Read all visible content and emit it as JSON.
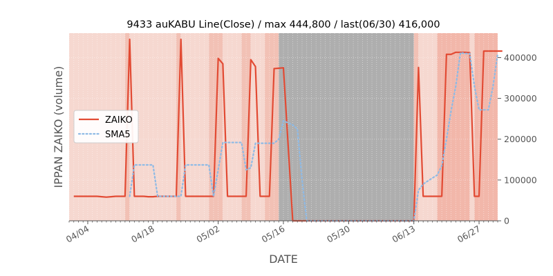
{
  "chart_data": {
    "type": "line",
    "title": "9433 auKABU Line(Close) / max 444,800 / last(06/30) 416,000",
    "xlabel": "DATE",
    "ylabel": "IPPAN ZAIKO (volume)",
    "x_start": "2024-03-31",
    "x_end": "2024-07-01",
    "ylim": [
      0,
      460000
    ],
    "yticks": [
      0,
      100000,
      200000,
      300000,
      400000
    ],
    "ytick_labels": [
      "0",
      "100000",
      "200000",
      "300000",
      "400000"
    ],
    "xticks": [
      "2024-04-04",
      "2024-04-18",
      "2024-05-02",
      "2024-05-16",
      "2024-05-30",
      "2024-06-13",
      "2024-06-27"
    ],
    "xtick_labels": [
      "04/04",
      "04/18",
      "05/02",
      "05/16",
      "05/30",
      "06/13",
      "06/27"
    ],
    "grid": true,
    "legend_position": "center-left",
    "series": [
      {
        "name": "ZAIKO",
        "style": "solid",
        "color": "#E24A33",
        "points": [
          [
            "2024-04-01",
            60000
          ],
          [
            "2024-04-02",
            60000
          ],
          [
            "2024-04-03",
            60000
          ],
          [
            "2024-04-04",
            60000
          ],
          [
            "2024-04-05",
            60000
          ],
          [
            "2024-04-06",
            60000
          ],
          [
            "2024-04-07",
            59000
          ],
          [
            "2024-04-08",
            58000
          ],
          [
            "2024-04-09",
            59000
          ],
          [
            "2024-04-10",
            60000
          ],
          [
            "2024-04-11",
            60000
          ],
          [
            "2024-04-12",
            60000
          ],
          [
            "2024-04-13",
            444800
          ],
          [
            "2024-04-14",
            60000
          ],
          [
            "2024-04-15",
            60000
          ],
          [
            "2024-04-16",
            60000
          ],
          [
            "2024-04-17",
            59000
          ],
          [
            "2024-04-18",
            59000
          ],
          [
            "2024-04-19",
            60000
          ],
          [
            "2024-04-20",
            60000
          ],
          [
            "2024-04-21",
            60000
          ],
          [
            "2024-04-22",
            60000
          ],
          [
            "2024-04-23",
            60000
          ],
          [
            "2024-04-24",
            444800
          ],
          [
            "2024-04-25",
            60000
          ],
          [
            "2024-04-26",
            60000
          ],
          [
            "2024-04-27",
            60000
          ],
          [
            "2024-04-28",
            60000
          ],
          [
            "2024-04-29",
            60000
          ],
          [
            "2024-04-30",
            60000
          ],
          [
            "2024-05-01",
            60000
          ],
          [
            "2024-05-02",
            398000
          ],
          [
            "2024-05-03",
            385000
          ],
          [
            "2024-05-04",
            60000
          ],
          [
            "2024-05-05",
            60000
          ],
          [
            "2024-05-06",
            60000
          ],
          [
            "2024-05-07",
            60000
          ],
          [
            "2024-05-08",
            60000
          ],
          [
            "2024-05-09",
            395000
          ],
          [
            "2024-05-10",
            378000
          ],
          [
            "2024-05-11",
            60000
          ],
          [
            "2024-05-12",
            60000
          ],
          [
            "2024-05-13",
            60000
          ],
          [
            "2024-05-14",
            373000
          ],
          [
            "2024-05-15",
            374000
          ],
          [
            "2024-05-16",
            375000
          ],
          [
            "2024-05-18",
            0
          ],
          [
            "2024-06-13",
            0
          ],
          [
            "2024-06-14",
            376000
          ],
          [
            "2024-06-15",
            60000
          ],
          [
            "2024-06-16",
            60000
          ],
          [
            "2024-06-17",
            60000
          ],
          [
            "2024-06-18",
            60000
          ],
          [
            "2024-06-19",
            60000
          ],
          [
            "2024-06-20",
            408000
          ],
          [
            "2024-06-21",
            408000
          ],
          [
            "2024-06-22",
            413000
          ],
          [
            "2024-06-23",
            413000
          ],
          [
            "2024-06-24",
            413000
          ],
          [
            "2024-06-25",
            412000
          ],
          [
            "2024-06-26",
            60000
          ],
          [
            "2024-06-27",
            60000
          ],
          [
            "2024-06-28",
            416000
          ],
          [
            "2024-06-29",
            416000
          ],
          [
            "2024-06-30",
            416000
          ],
          [
            "2024-07-01",
            416000
          ],
          [
            "2024-07-02",
            416000
          ]
        ]
      },
      {
        "name": "SMA5",
        "style": "dotted",
        "color": "#8EBAE5",
        "points": [
          [
            "2024-04-13",
            60000
          ],
          [
            "2024-04-14",
            137000
          ],
          [
            "2024-04-17",
            137000
          ],
          [
            "2024-04-18",
            137000
          ],
          [
            "2024-04-19",
            60000
          ],
          [
            "2024-04-24",
            60000
          ],
          [
            "2024-04-25",
            137000
          ],
          [
            "2024-04-29",
            137000
          ],
          [
            "2024-04-30",
            137000
          ],
          [
            "2024-05-01",
            60000
          ],
          [
            "2024-05-02",
            125000
          ],
          [
            "2024-05-03",
            192000
          ],
          [
            "2024-05-06",
            192000
          ],
          [
            "2024-05-07",
            192000
          ],
          [
            "2024-05-08",
            125000
          ],
          [
            "2024-05-09",
            130000
          ],
          [
            "2024-05-10",
            190000
          ],
          [
            "2024-05-13",
            190000
          ],
          [
            "2024-05-14",
            190000
          ],
          [
            "2024-05-15",
            200000
          ],
          [
            "2024-05-16",
            245000
          ],
          [
            "2024-05-17",
            240000
          ],
          [
            "2024-05-18",
            235000
          ],
          [
            "2024-05-19",
            225000
          ],
          [
            "2024-05-20",
            100000
          ],
          [
            "2024-05-21",
            0
          ],
          [
            "2024-06-13",
            0
          ],
          [
            "2024-06-14",
            75000
          ],
          [
            "2024-06-15",
            90000
          ],
          [
            "2024-06-17",
            105000
          ],
          [
            "2024-06-18",
            112000
          ],
          [
            "2024-06-19",
            135000
          ],
          [
            "2024-06-20",
            200000
          ],
          [
            "2024-06-21",
            270000
          ],
          [
            "2024-06-22",
            330000
          ],
          [
            "2024-06-23",
            412000
          ],
          [
            "2024-06-24",
            410000
          ],
          [
            "2024-06-25",
            410000
          ],
          [
            "2024-06-26",
            330000
          ],
          [
            "2024-06-27",
            272000
          ],
          [
            "2024-06-28",
            272000
          ],
          [
            "2024-06-29",
            272000
          ],
          [
            "2024-06-30",
            330000
          ],
          [
            "2024-07-01",
            410000
          ]
        ]
      }
    ],
    "shaded_regions": [
      {
        "from": "2024-03-31",
        "to": "2024-04-12",
        "shade": "light"
      },
      {
        "from": "2024-04-12",
        "to": "2024-04-13",
        "shade": "medium"
      },
      {
        "from": "2024-04-13",
        "to": "2024-04-23",
        "shade": "light"
      },
      {
        "from": "2024-04-23",
        "to": "2024-04-24",
        "shade": "medium"
      },
      {
        "from": "2024-04-24",
        "to": "2024-04-30",
        "shade": "light"
      },
      {
        "from": "2024-04-30",
        "to": "2024-05-03",
        "shade": "medium"
      },
      {
        "from": "2024-05-03",
        "to": "2024-05-07",
        "shade": "light"
      },
      {
        "from": "2024-05-07",
        "to": "2024-05-09",
        "shade": "medium"
      },
      {
        "from": "2024-05-09",
        "to": "2024-05-12",
        "shade": "light"
      },
      {
        "from": "2024-05-12",
        "to": "2024-05-15",
        "shade": "medium"
      },
      {
        "from": "2024-05-15",
        "to": "2024-06-13",
        "shade": "gray"
      },
      {
        "from": "2024-06-13",
        "to": "2024-06-14",
        "shade": "medium"
      },
      {
        "from": "2024-06-14",
        "to": "2024-06-18",
        "shade": "light"
      },
      {
        "from": "2024-06-18",
        "to": "2024-06-25",
        "shade": "strong"
      },
      {
        "from": "2024-06-25",
        "to": "2024-06-26",
        "shade": "light"
      },
      {
        "from": "2024-06-26",
        "to": "2024-07-01",
        "shade": "strong"
      }
    ],
    "colors": {
      "light": "#F6D8D0",
      "medium": "#F2C1B5",
      "strong": "#F2B7AA",
      "gray": "#AEAEAE",
      "plot_bg": "#E5E5E5",
      "tick": "#555555"
    }
  }
}
